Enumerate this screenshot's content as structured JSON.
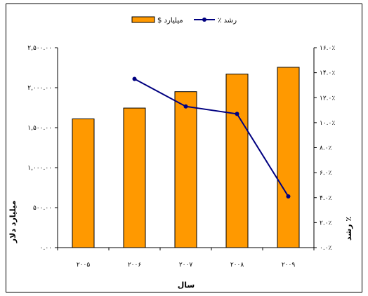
{
  "chart_data": {
    "type": "bar",
    "categories": [
      "۲۰۰۵",
      "۲۰۰۶",
      "۲۰۰۷",
      "۲۰۰۸",
      "۲۰۰۹"
    ],
    "series": [
      {
        "name": "$ میلیارد",
        "type": "bar",
        "axis": "left",
        "color": "#ff9900",
        "values": [
          1610,
          1745,
          1950,
          2170,
          2255
        ]
      },
      {
        "name": "٪ رشد",
        "type": "line",
        "axis": "right",
        "color": "#000080",
        "values": [
          null,
          13.5,
          11.3,
          10.7,
          4.1
        ]
      }
    ],
    "xlabel": "سال",
    "ylabel_left": "میلیارد دلار",
    "ylabel_right": "رشد ٪",
    "ylim_left": [
      0,
      2500
    ],
    "ylim_right": [
      0,
      16
    ],
    "yticks_left": [
      "۰.۰۰",
      "۵۰۰.۰۰",
      "۱,۰۰۰.۰۰",
      "۱,۵۰۰.۰۰",
      "۲,۰۰۰.۰۰",
      "۲,۵۰۰.۰۰"
    ],
    "yticks_right": [
      "۰.۰٪",
      "۲.۰٪",
      "۴.۰٪",
      "۶.۰٪",
      "۸.۰٪",
      "۱۰.۰٪",
      "۱۲.۰٪",
      "۱۴.۰٪",
      "۱۶.۰٪"
    ],
    "legend_position": "top",
    "grid": false
  }
}
